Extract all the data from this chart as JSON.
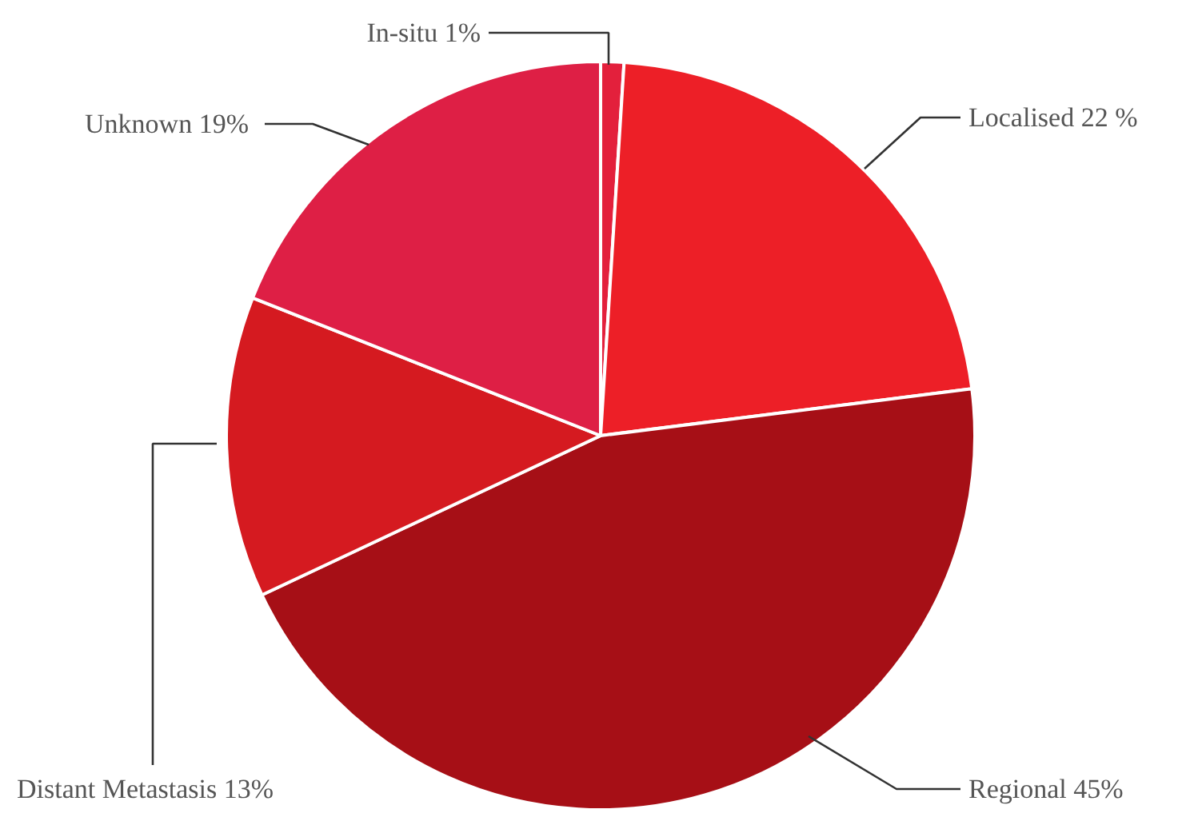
{
  "chart_data": {
    "type": "pie",
    "categories": [
      "In-situ",
      "Localised",
      "Regional",
      "Distant  Metastasis",
      "Unknown"
    ],
    "values": [
      1,
      22,
      45,
      13,
      19
    ],
    "value_labels": [
      "1%",
      "22 %",
      "45%",
      "13%",
      "19%"
    ],
    "colors": [
      "#e3203c",
      "#ed1f27",
      "#a60f16",
      "#d51a20",
      "#de1f45"
    ]
  }
}
